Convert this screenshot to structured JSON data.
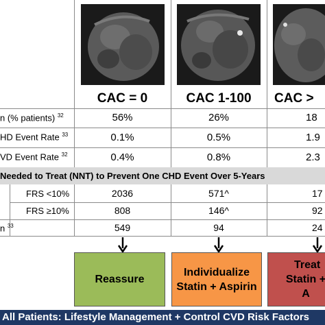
{
  "columns": {
    "cac0": "CAC = 0",
    "cac1": "CAC 1-100",
    "cac2": "CAC >"
  },
  "rows": {
    "prevalence": {
      "label": "n (% patients)",
      "ref": "32",
      "values": [
        "56%",
        "26%",
        "18"
      ]
    },
    "chd_rate": {
      "label": "HD Event Rate",
      "ref": "33",
      "values": [
        "0.1%",
        "0.5%",
        "1.9"
      ]
    },
    "cvd_rate": {
      "label": "VD Event Rate",
      "ref": "32",
      "values": [
        "0.4%",
        "0.8%",
        "2.3"
      ]
    }
  },
  "nnt_band": "Needed to Treat (NNT) to Prevent One CHD Event Over 5-Years",
  "nnt_rows": {
    "frs_low": {
      "label": "FRS <10%",
      "values": [
        "2036",
        "571^",
        "17"
      ]
    },
    "frs_high": {
      "label": "FRS ≥10%",
      "values": [
        "808",
        "146^",
        "92"
      ]
    },
    "statin": {
      "label": "n",
      "ref": "33",
      "values": [
        "549",
        "94",
        "24"
      ]
    }
  },
  "actions": {
    "reassure": "Reassure",
    "individualize_line1": "Individualize",
    "individualize_line2": "Statin + Aspirin",
    "treat_line1": "Treat",
    "treat_line2": "Statin + A"
  },
  "footer": "All Patients:  Lifestyle Management + Control CVD Risk Factors",
  "colors": {
    "reassure": "#9bbb59",
    "individualize": "#f79646",
    "treat": "#c0504d",
    "band": "#d9d9d9",
    "footer": "#1f3864"
  }
}
